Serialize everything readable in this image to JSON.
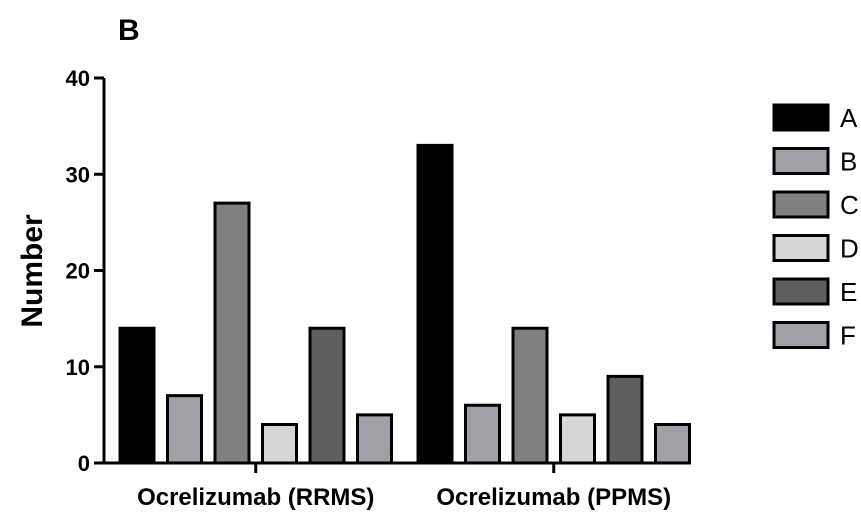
{
  "chart_data": {
    "type": "bar",
    "panel_label": "B",
    "title": "",
    "xlabel": "",
    "ylabel": "Number",
    "ylim": [
      0,
      40
    ],
    "yticks": [
      0,
      10,
      20,
      30,
      40
    ],
    "categories": [
      "Ocrelizumab (RRMS)",
      "Ocrelizumab (PPMS)"
    ],
    "series": [
      {
        "name": "A",
        "color": "#000000",
        "values": [
          14,
          33
        ]
      },
      {
        "name": "B",
        "color": "#a0a0a6",
        "values": [
          7,
          6
        ]
      },
      {
        "name": "C",
        "color": "#808080",
        "values": [
          27,
          14
        ]
      },
      {
        "name": "D",
        "color": "#d6d6d6",
        "values": [
          4,
          5
        ]
      },
      {
        "name": "E",
        "color": "#5e5e5e",
        "values": [
          14,
          9
        ]
      },
      {
        "name": "F",
        "color": "#a0a0a6",
        "values": [
          5,
          4
        ]
      }
    ],
    "legend_position": "right",
    "grid": false
  }
}
